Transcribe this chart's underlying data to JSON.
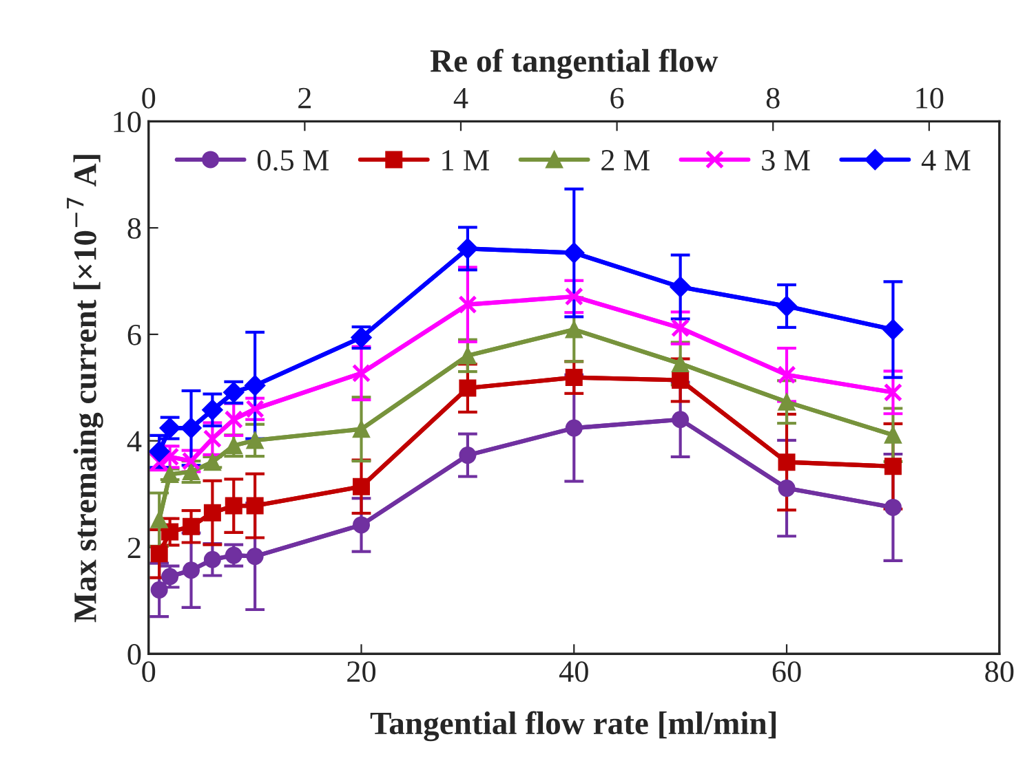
{
  "chart_data": {
    "type": "line",
    "xlabel": "Tangential flow rate [ml/min]",
    "ylabel": "Max stremaing current [×10$^{−7}$ A]",
    "x2label": "Re of tangential flow",
    "x": [
      1,
      2,
      4,
      6,
      8,
      10,
      20,
      30,
      40,
      50,
      60,
      70
    ],
    "xlim": [
      0,
      80
    ],
    "xticks": [
      0,
      20,
      40,
      60,
      80
    ],
    "x2lim": [
      0,
      10.9
    ],
    "x2ticks": [
      0,
      2,
      4,
      6,
      8,
      10
    ],
    "ylim": [
      0,
      10
    ],
    "yticks": [
      0,
      2,
      4,
      6,
      8,
      10
    ],
    "grid": false,
    "legend": "top",
    "line_style": "solid",
    "series": [
      {
        "name": "0.5 M",
        "color": "#7030a0",
        "marker": "circle",
        "values": [
          1.2,
          1.45,
          1.57,
          1.77,
          1.85,
          1.83,
          2.42,
          3.73,
          4.24,
          4.4,
          3.11,
          2.75
        ],
        "errors": [
          0.5,
          0.2,
          0.7,
          0.3,
          0.2,
          1.0,
          0.5,
          0.4,
          1.0,
          0.7,
          0.9,
          1.0
        ]
      },
      {
        "name": "1 M",
        "color": "#c00000",
        "marker": "square",
        "values": [
          1.88,
          2.29,
          2.39,
          2.65,
          2.78,
          2.78,
          3.14,
          4.99,
          5.19,
          5.14,
          3.6,
          3.52
        ],
        "errors": [
          0.45,
          0.25,
          0.3,
          0.6,
          0.5,
          0.6,
          0.5,
          0.45,
          0.3,
          0.4,
          0.9,
          0.8
        ]
      },
      {
        "name": "2 M",
        "color": "#77933c",
        "marker": "triangle",
        "values": [
          2.52,
          3.37,
          3.42,
          3.6,
          3.91,
          4.01,
          4.22,
          5.6,
          6.09,
          5.45,
          4.73,
          4.11
        ],
        "errors": [
          0.5,
          0.1,
          0.2,
          0.1,
          0.2,
          0.3,
          0.6,
          0.3,
          0.6,
          0.4,
          0.4,
          0.5
        ]
      },
      {
        "name": "3 M",
        "color": "#ff00ff",
        "marker": "cross",
        "values": [
          3.6,
          3.7,
          3.62,
          4.04,
          4.4,
          4.6,
          5.27,
          6.56,
          6.71,
          6.12,
          5.24,
          4.91
        ],
        "errors": [
          0.15,
          0.2,
          0.2,
          0.3,
          0.3,
          0.2,
          0.5,
          0.7,
          0.3,
          0.3,
          0.5,
          0.4
        ]
      },
      {
        "name": "4 M",
        "color": "#0000ff",
        "marker": "diamond",
        "values": [
          3.8,
          4.24,
          4.24,
          4.58,
          4.91,
          5.04,
          5.94,
          7.61,
          7.53,
          6.89,
          6.53,
          6.09
        ],
        "errors": [
          0.3,
          0.2,
          0.7,
          0.3,
          0.2,
          1.0,
          0.2,
          0.4,
          1.2,
          0.6,
          0.4,
          0.9
        ]
      }
    ]
  }
}
